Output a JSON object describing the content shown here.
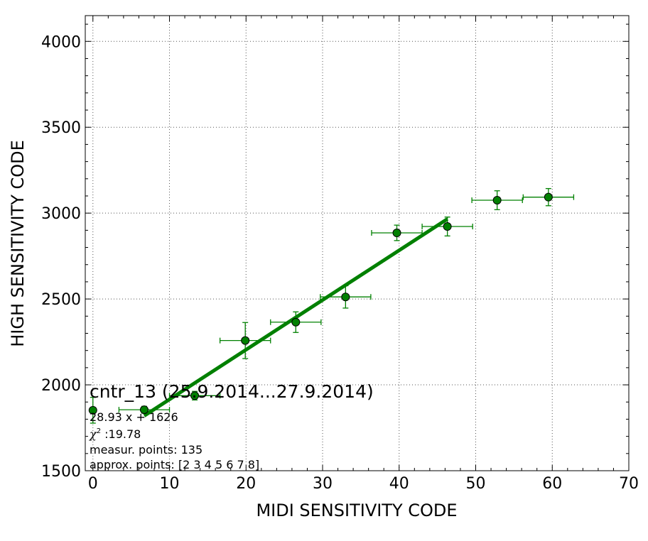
{
  "chart_data": {
    "type": "scatter",
    "xlabel": "MIDI SENSITIVITY CODE",
    "ylabel": "HIGH SENSITIVITY CODE",
    "xlim": [
      -1,
      70
    ],
    "ylim": [
      1500,
      4150
    ],
    "xticks": [
      "0",
      "10",
      "20",
      "30",
      "40",
      "50",
      "60",
      "70"
    ],
    "yticks": [
      "1500",
      "2000",
      "2500",
      "3000",
      "3500",
      "4000"
    ],
    "grid": true,
    "colors": {
      "series": "#008000",
      "marker_edge": "#000000"
    },
    "series": [
      {
        "kind": "errorbar-points",
        "points": [
          {
            "x": 0.0,
            "y": 1852,
            "xerr": 0.0,
            "yerr": 75
          },
          {
            "x": 6.7,
            "y": 1855,
            "xerr": 3.3,
            "yerr": 20
          },
          {
            "x": 13.3,
            "y": 1937,
            "xerr": 3.3,
            "yerr": 25
          },
          {
            "x": 19.9,
            "y": 2258,
            "xerr": 3.3,
            "yerr": 105
          },
          {
            "x": 26.5,
            "y": 2365,
            "xerr": 3.3,
            "yerr": 60
          },
          {
            "x": 33.0,
            "y": 2512,
            "xerr": 3.3,
            "yerr": 65
          },
          {
            "x": 39.7,
            "y": 2885,
            "xerr": 3.3,
            "yerr": 45
          },
          {
            "x": 46.3,
            "y": 2922,
            "xerr": 3.3,
            "yerr": 55
          },
          {
            "x": 52.8,
            "y": 3075,
            "xerr": 3.3,
            "yerr": 55
          },
          {
            "x": 59.5,
            "y": 3093,
            "xerr": 3.3,
            "yerr": 50
          }
        ]
      },
      {
        "kind": "fit-line",
        "slope": 28.93,
        "intercept": 1626,
        "x_range": [
          6.7,
          46.3
        ]
      }
    ]
  },
  "annotation": {
    "title": "cntr_13 (25.9.2014...27.9.2014)",
    "fit": "28.93 x + 1626",
    "chi_symbol": "χ",
    "chi_sup": "2",
    "chi_value": " :19.78",
    "measur_points": "measur. points: 135",
    "approx_points": "approx. points: [2 3 4 5 6 7 8]"
  }
}
